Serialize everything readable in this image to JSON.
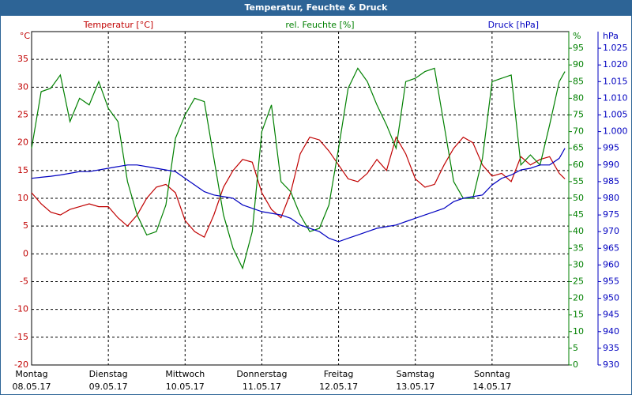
{
  "chart_data": {
    "type": "line",
    "title": "Temperatur, Feuchte & Druck",
    "x": [
      0,
      0.125,
      0.25,
      0.375,
      0.5,
      0.625,
      0.75,
      0.875,
      1,
      1.125,
      1.25,
      1.375,
      1.5,
      1.625,
      1.75,
      1.875,
      2,
      2.125,
      2.25,
      2.375,
      2.5,
      2.625,
      2.75,
      2.875,
      3,
      3.125,
      3.25,
      3.375,
      3.5,
      3.625,
      3.75,
      3.875,
      4,
      4.125,
      4.25,
      4.375,
      4.5,
      4.625,
      4.75,
      4.875,
      5,
      5.125,
      5.25,
      5.375,
      5.5,
      5.625,
      5.75,
      5.875,
      6,
      6.125,
      6.25,
      6.375,
      6.5,
      6.625,
      6.75,
      6.875,
      6.95
    ],
    "xlim": [
      0,
      7
    ],
    "xticks": [
      {
        "value": 0,
        "label": "Montag",
        "date": "08.05.17"
      },
      {
        "value": 1,
        "label": "Dienstag",
        "date": "09.05.17"
      },
      {
        "value": 2,
        "label": "Mittwoch",
        "date": "10.05.17"
      },
      {
        "value": 3,
        "label": "Donnerstag",
        "date": "11.05.17"
      },
      {
        "value": 4,
        "label": "Freitag",
        "date": "12.05.17"
      },
      {
        "value": 5,
        "label": "Samstag",
        "date": "13.05.17"
      },
      {
        "value": 6,
        "label": "Sonntag",
        "date": "14.05.17"
      }
    ],
    "ylabel": "°C",
    "ylim": [
      -20,
      40
    ],
    "yticks": [
      -20,
      -15,
      -10,
      -5,
      0,
      5,
      10,
      15,
      20,
      25,
      30,
      35
    ],
    "y2label": "%",
    "y2lim": [
      0,
      100
    ],
    "y2ticks": [
      0,
      5,
      10,
      15,
      20,
      25,
      30,
      35,
      40,
      45,
      50,
      55,
      60,
      65,
      70,
      75,
      80,
      85,
      90,
      95
    ],
    "y3label": "hPa",
    "y3lim": [
      930,
      1030
    ],
    "y3ticks": [
      930,
      935,
      940,
      945,
      950,
      955,
      960,
      965,
      970,
      975,
      980,
      985,
      990,
      995,
      {
        "value": 1000,
        "label": "1.000"
      },
      {
        "value": 1005,
        "label": "1.005"
      },
      {
        "value": 1010,
        "label": "1.010"
      },
      {
        "value": 1015,
        "label": "1.015"
      },
      {
        "value": 1020,
        "label": "1.020"
      },
      {
        "value": 1025,
        "label": "1.025"
      }
    ],
    "grid": true,
    "series": [
      {
        "name": "Temperatur [°C]",
        "color": "#c00000",
        "values": [
          11,
          9,
          7.5,
          7,
          8,
          8.5,
          9,
          8.5,
          8.5,
          6.5,
          5,
          7,
          10,
          12,
          12.5,
          11,
          6,
          4,
          3,
          7,
          12,
          15,
          17,
          16.5,
          11,
          8,
          6.5,
          11,
          18,
          21,
          20.5,
          18.5,
          16,
          13.5,
          13,
          14.5,
          17,
          15,
          21,
          18,
          13.5,
          12,
          12.5,
          16,
          19,
          21,
          20,
          16,
          14,
          14.5,
          13,
          17.5,
          16,
          17,
          17.5,
          14.5,
          13.5
        ]
      },
      {
        "name": "rel. Feuchte [%]",
        "color": "#008000",
        "axis": "y2",
        "values": [
          65,
          82,
          83,
          87,
          73,
          80,
          78,
          85,
          77,
          73,
          55,
          45,
          39,
          40,
          48,
          68,
          75,
          80,
          79,
          62,
          45,
          35,
          29,
          40,
          70,
          78,
          55,
          52,
          45,
          40,
          41,
          48,
          65,
          83,
          89,
          85,
          78,
          72,
          65,
          85,
          86,
          88,
          89,
          72,
          55,
          50,
          50,
          62,
          85,
          86,
          87,
          60,
          63,
          60,
          72,
          85,
          88
        ]
      },
      {
        "name": "Druck [hPa]",
        "color": "#0000c0",
        "axis": "y3",
        "values": [
          986,
          986.3,
          986.6,
          987,
          987.5,
          988,
          988,
          988.5,
          989,
          989.5,
          990,
          990,
          989.5,
          989,
          988.5,
          988,
          986,
          984,
          982,
          981,
          980.5,
          980,
          978,
          977,
          976,
          975.5,
          975,
          974,
          972,
          971,
          970,
          968,
          967,
          968,
          969,
          970,
          971,
          971.5,
          972,
          973,
          974,
          975,
          976,
          977,
          979,
          980,
          980.5,
          981,
          984,
          986,
          987,
          988.5,
          989,
          990,
          990,
          992,
          995
        ]
      }
    ]
  }
}
